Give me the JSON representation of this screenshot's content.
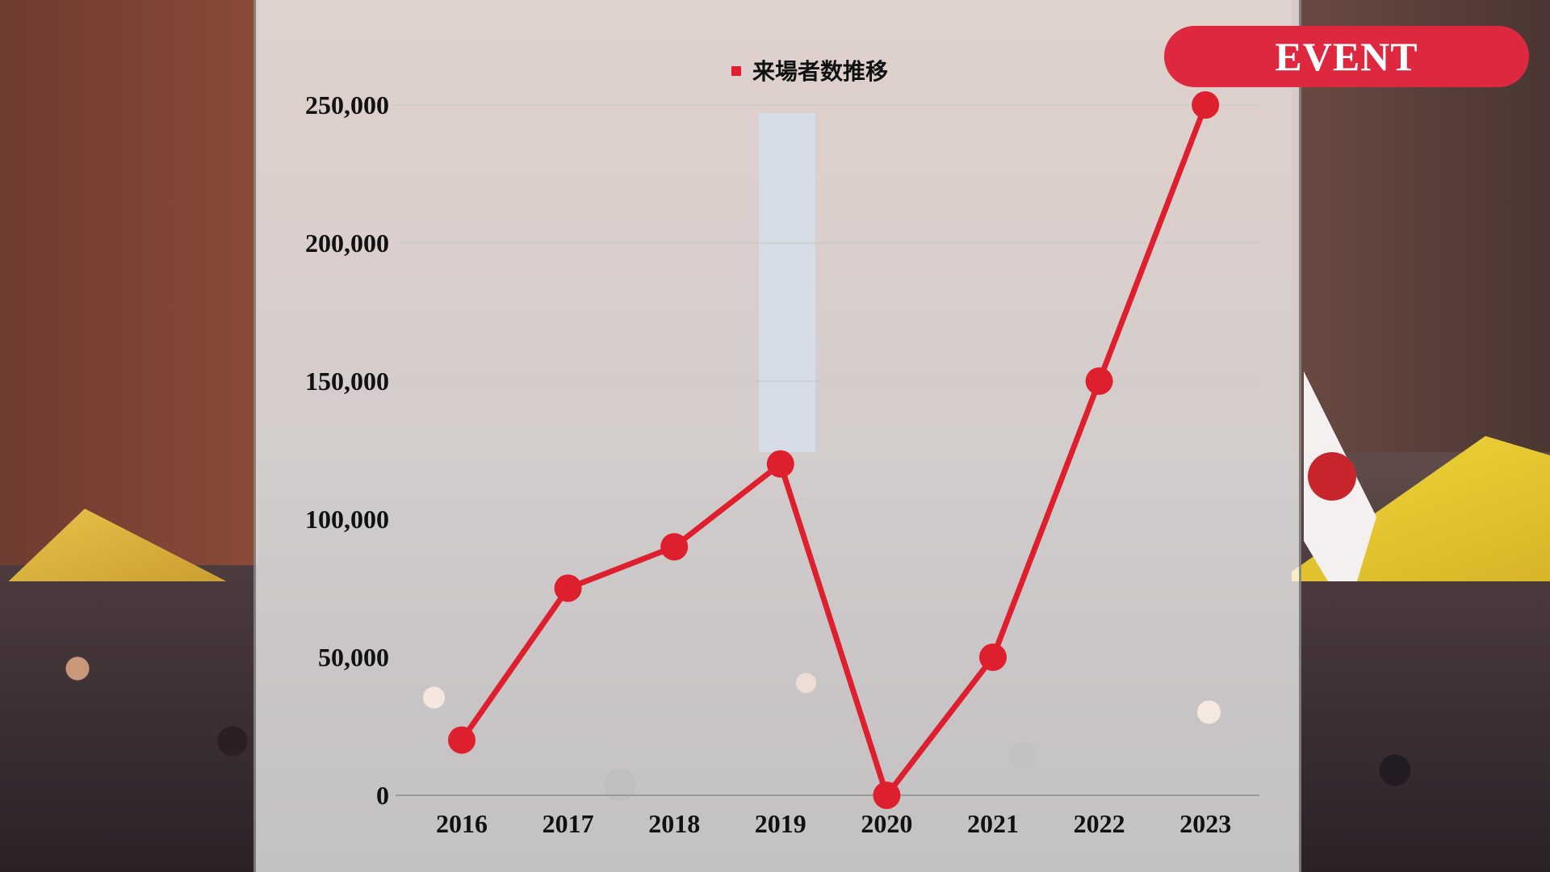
{
  "badge": {
    "label": "EVENT"
  },
  "colors": {
    "series": "#de1f2e",
    "badge": "#de2840"
  },
  "chart_data": {
    "type": "line",
    "title": "",
    "xlabel": "",
    "ylabel": "",
    "categories": [
      "2016",
      "2017",
      "2018",
      "2019",
      "2020",
      "2021",
      "2022",
      "2023"
    ],
    "series": [
      {
        "name": "来場者数推移",
        "values": [
          20000,
          75000,
          90000,
          120000,
          0,
          50000,
          150000,
          250000
        ]
      }
    ],
    "ylim": [
      0,
      250000
    ],
    "yticks": [
      "0",
      "50,000",
      "100,000",
      "150,000",
      "200,000",
      "250,000"
    ],
    "grid": true,
    "legend": "top-center"
  }
}
